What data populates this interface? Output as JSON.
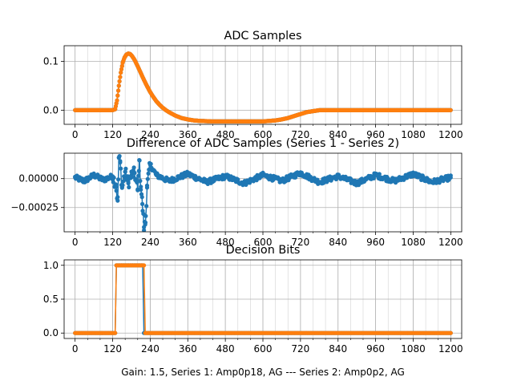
{
  "figure": {
    "xlabel": "Gain: 1.5, Series 1: Amp0p18, AG --- Series 2: Amp0p2, AG",
    "colors": {
      "series1": "#1f77b4",
      "series2": "#ff7f0e",
      "grid": "#b0b0b0"
    }
  },
  "chart_data": [
    {
      "type": "line",
      "title": "ADC Samples",
      "xlabel": "",
      "ylabel": "",
      "xlim": [
        -35,
        1235
      ],
      "ylim": [
        -0.029,
        0.132
      ],
      "xticks": [
        0,
        120,
        240,
        360,
        480,
        600,
        720,
        840,
        960,
        1080,
        1200
      ],
      "xtick_labels": [
        "0",
        "120",
        "240",
        "360",
        "480",
        "600",
        "720",
        "840",
        "960",
        "1080",
        "1200"
      ],
      "yticks": [
        0.0,
        0.1
      ],
      "ytick_labels": [
        "0.0",
        "0.1"
      ],
      "grid": true,
      "markers": true,
      "series": [
        {
          "color": "#1f77b4",
          "x": [
            0,
            100,
            120,
            128,
            134,
            140,
            146,
            152,
            158,
            164,
            170,
            176,
            182,
            190,
            200,
            210,
            220,
            230,
            240,
            250,
            260,
            270,
            280,
            290,
            300,
            320,
            340,
            360,
            380,
            400,
            440,
            480,
            520,
            560,
            600,
            620,
            640,
            660,
            680,
            700,
            720,
            740,
            760,
            780,
            800,
            820,
            840,
            900,
            1000,
            1100,
            1200
          ],
          "y": [
            0.0,
            0.0,
            0.0,
            0.002,
            0.02,
            0.05,
            0.077,
            0.097,
            0.108,
            0.114,
            0.116,
            0.115,
            0.111,
            0.103,
            0.09,
            0.076,
            0.062,
            0.049,
            0.037,
            0.027,
            0.018,
            0.011,
            0.005,
            0.0,
            -0.004,
            -0.011,
            -0.016,
            -0.019,
            -0.021,
            -0.022,
            -0.023,
            -0.023,
            -0.023,
            -0.023,
            -0.023,
            -0.022,
            -0.021,
            -0.019,
            -0.016,
            -0.012,
            -0.008,
            -0.004,
            -0.002,
            0.0,
            0.0,
            0.0,
            0.0,
            0.0,
            0.0,
            0.0,
            0.0
          ]
        },
        {
          "color": "#ff7f0e",
          "x": [
            0,
            100,
            120,
            128,
            134,
            140,
            146,
            152,
            158,
            164,
            170,
            176,
            182,
            190,
            200,
            210,
            220,
            230,
            240,
            250,
            260,
            270,
            280,
            290,
            300,
            320,
            340,
            360,
            380,
            400,
            440,
            480,
            520,
            560,
            600,
            620,
            640,
            660,
            680,
            700,
            720,
            740,
            760,
            780,
            800,
            820,
            840,
            900,
            1000,
            1100,
            1200
          ],
          "y": [
            0.0,
            0.0,
            0.0,
            0.002,
            0.02,
            0.05,
            0.077,
            0.097,
            0.108,
            0.114,
            0.116,
            0.115,
            0.111,
            0.103,
            0.09,
            0.076,
            0.062,
            0.049,
            0.037,
            0.027,
            0.018,
            0.011,
            0.005,
            0.0,
            -0.004,
            -0.011,
            -0.016,
            -0.019,
            -0.021,
            -0.022,
            -0.023,
            -0.023,
            -0.023,
            -0.023,
            -0.023,
            -0.022,
            -0.021,
            -0.019,
            -0.016,
            -0.012,
            -0.008,
            -0.004,
            -0.002,
            0.0,
            0.0,
            0.0,
            0.0,
            0.0,
            0.0,
            0.0,
            0.0
          ]
        }
      ]
    },
    {
      "type": "line",
      "title": "Difference of ADC Samples (Series 1 - Series 2)",
      "xlabel": "",
      "ylabel": "",
      "xlim": [
        -35,
        1235
      ],
      "ylim": [
        -0.00046,
        0.00022
      ],
      "xticks": [
        0,
        120,
        240,
        360,
        480,
        600,
        720,
        840,
        960,
        1080,
        1200
      ],
      "xtick_labels": [
        "0",
        "120",
        "240",
        "360",
        "480",
        "600",
        "720",
        "840",
        "960",
        "1080",
        "1200"
      ],
      "yticks": [
        0.0,
        -0.00025
      ],
      "ytick_labels": [
        "0.00000",
        "−0.00025"
      ],
      "grid": true,
      "markers": true,
      "series": [
        {
          "color": "#1f77b4",
          "x": [
            0,
            30,
            60,
            90,
            120,
            130,
            136,
            140,
            144,
            150,
            160,
            170,
            180,
            190,
            200,
            205,
            210,
            215,
            220,
            225,
            230,
            240,
            260,
            300,
            360,
            420,
            480,
            540,
            600,
            660,
            720,
            780,
            840,
            900,
            960,
            1020,
            1080,
            1140,
            1200
          ],
          "y": [
            1e-05,
            -2e-05,
            3e-05,
            -1e-05,
            2e-05,
            -5e-05,
            -0.00019,
            0.00018,
            0.00014,
            -8e-05,
            6e-05,
            -4e-05,
            3e-05,
            5e-05,
            -0.0001,
            0.00016,
            -7e-05,
            -0.00022,
            -0.00042,
            -0.00038,
            -6e-05,
            0.00012,
            3e-05,
            -2e-05,
            4e-05,
            -3e-05,
            2e-05,
            -4e-05,
            3e-05,
            -2e-05,
            5e-05,
            -3e-05,
            2e-05,
            -4e-05,
            3e-05,
            -2e-05,
            4e-05,
            -3e-05,
            1e-05
          ]
        }
      ]
    },
    {
      "type": "line",
      "title": "Decision Bits",
      "xlabel": "Gain: 1.5, Series 1: Amp0p18, AG --- Series 2: Amp0p2, AG",
      "ylabel": "",
      "xlim": [
        -35,
        1235
      ],
      "ylim": [
        -0.08,
        1.08
      ],
      "xticks": [
        0,
        120,
        240,
        360,
        480,
        600,
        720,
        840,
        960,
        1080,
        1200
      ],
      "xtick_labels": [
        "0",
        "120",
        "240",
        "360",
        "480",
        "600",
        "720",
        "840",
        "960",
        "1080",
        "1200"
      ],
      "yticks": [
        0.0,
        0.5,
        1.0
      ],
      "ytick_labels": [
        "0.0",
        "0.5",
        "1.0"
      ],
      "grid": true,
      "markers": true,
      "series": [
        {
          "color": "#1f77b4",
          "x": [
            0,
            129,
            130,
            218,
            219,
            1200
          ],
          "y": [
            0,
            0,
            1,
            1,
            0,
            0
          ]
        },
        {
          "color": "#ff7f0e",
          "x": [
            0,
            129,
            130,
            220,
            221,
            1200
          ],
          "y": [
            0,
            0,
            1,
            1,
            0,
            0
          ]
        }
      ]
    }
  ]
}
